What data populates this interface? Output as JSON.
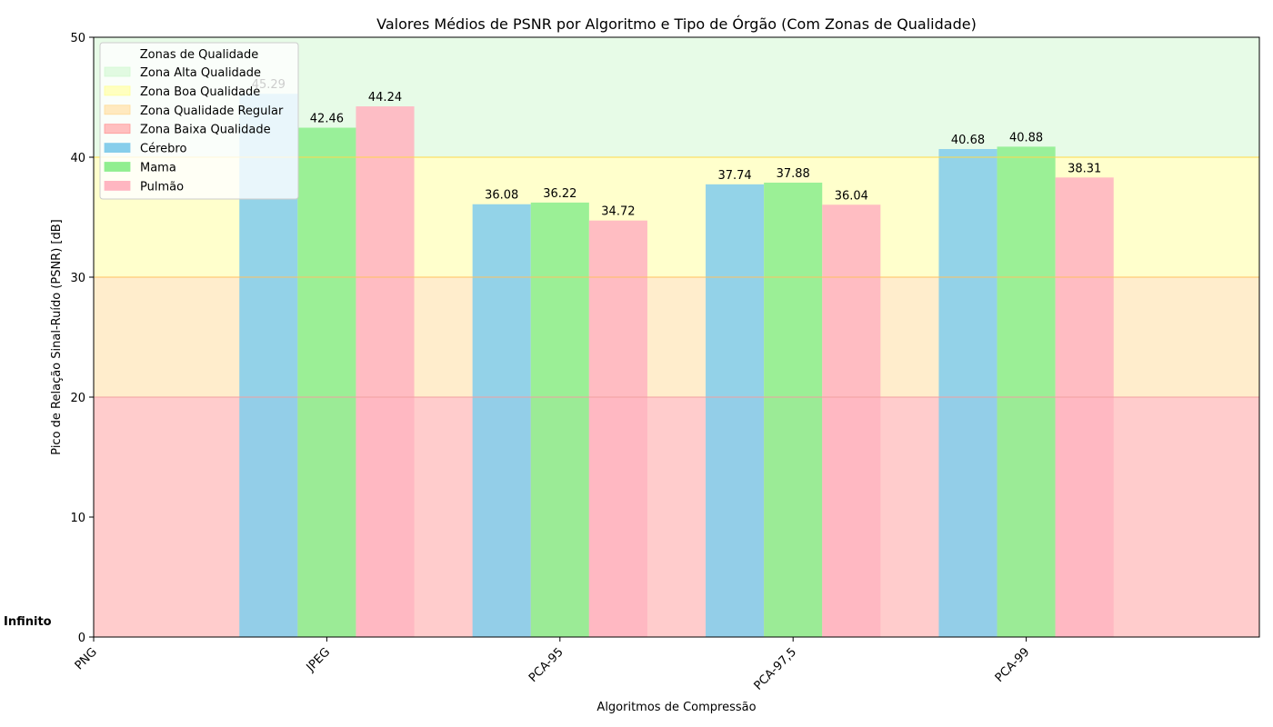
{
  "chart_data": {
    "type": "bar",
    "title": "Valores Médios de PSNR por Algoritmo e Tipo de Órgão (Com Zonas de Qualidade)",
    "xlabel": "Algoritmos de Compressão",
    "ylabel": "Pico de Relação Sinal-Ruído (PSNR) [dB]",
    "ylim": [
      0,
      50
    ],
    "yticks": [
      "0",
      "10",
      "20",
      "30",
      "40",
      "50"
    ],
    "categories": [
      "PNG",
      "JPEG",
      "PCA-95",
      "PCA-97,5",
      "PCA-99"
    ],
    "series": [
      {
        "name": "Cérebro",
        "color": "#87ceeb",
        "values": [
          null,
          45.29,
          36.08,
          37.74,
          40.68
        ],
        "labels": [
          "",
          "45.29",
          "36.08",
          "37.74",
          "40.68"
        ]
      },
      {
        "name": "Mama",
        "color": "#90ee90",
        "values": [
          null,
          42.46,
          36.22,
          37.88,
          40.88
        ],
        "labels": [
          "",
          "42.46",
          "36.22",
          "37.88",
          "40.88"
        ]
      },
      {
        "name": "Pulmão",
        "color": "#ffb6c1",
        "values": [
          null,
          44.24,
          34.72,
          36.04,
          38.31
        ],
        "labels": [
          "",
          "44.24",
          "34.72",
          "36.04",
          "38.31"
        ]
      }
    ],
    "zones": [
      {
        "name": "Zona Alta Qualidade",
        "from": 40,
        "to": 50,
        "color": "#90ee90",
        "opacity": 0.22
      },
      {
        "name": "Zona Boa Qualidade",
        "from": 30,
        "to": 40,
        "color": "#ffff00",
        "opacity": 0.2
      },
      {
        "name": "Zona Qualidade Regular",
        "from": 20,
        "to": 30,
        "color": "#ffa500",
        "opacity": 0.2
      },
      {
        "name": "Zona Baixa Qualidade",
        "from": 0,
        "to": 20,
        "color": "#ff0000",
        "opacity": 0.2
      }
    ],
    "zone_lines": [
      {
        "y": 40,
        "color": "#ffd84a"
      },
      {
        "y": 30,
        "color": "#ffc060"
      },
      {
        "y": 20,
        "color": "#f2a0a0"
      }
    ],
    "annotation": {
      "text": "Infinito",
      "color": "#ff0000",
      "category": "PNG"
    },
    "legend": {
      "title": "Zonas de Qualidade",
      "placement": "top-left"
    },
    "grid": false
  }
}
